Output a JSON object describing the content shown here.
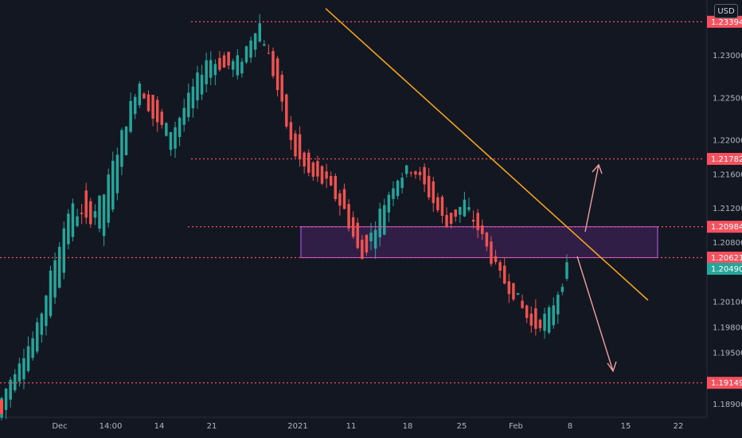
{
  "chart_data": {
    "type": "candlestick",
    "currency": "USD",
    "ylim": [
      1.188,
      1.2365
    ],
    "y_ticks": [
      "1.23000",
      "1.22500",
      "1.22000",
      "1.21600",
      "1.21200",
      "1.20800",
      "1.20100",
      "1.19800",
      "1.19500",
      "1.18900"
    ],
    "x_ticks": [
      "Dec",
      "14:00",
      "14",
      "21",
      "2021",
      "11",
      "18",
      "25",
      "Feb",
      "8",
      "15",
      "22"
    ],
    "price_levels": [
      {
        "label": "1.23394",
        "value": 1.23394
      },
      {
        "label": "1.21782",
        "value": 1.21782
      },
      {
        "label": "1.20984",
        "value": 1.20984
      },
      {
        "label": "1.20621",
        "value": 1.20621
      },
      {
        "label": "1.19149",
        "value": 1.19149
      }
    ],
    "current_price": {
      "label": "1.20490",
      "value": 1.2049
    },
    "zone": {
      "top": 1.20984,
      "bottom": 1.20621
    },
    "trendline": {
      "from": 1.2355,
      "to": 1.2012
    },
    "arrows": [
      "up",
      "down"
    ],
    "colors": {
      "background": "#131722",
      "up_candle": "#26a69a",
      "down_candle": "#ef5350",
      "level_line": "#f5515f",
      "trendline": "#f0a020",
      "zone_fill": "#6a2c8a",
      "zone_border": "#c45cff",
      "current_price": "#26a69a",
      "arrow": "#f0a0a0",
      "axis_text": "#b2b5be"
    },
    "series": [
      {
        "name": "",
        "points": [
          [
            1.1874,
            1.1896
          ],
          [
            1.1912,
            1.1942
          ],
          [
            1.1953,
            1.1972
          ],
          [
            1.2005,
            1.2052
          ],
          [
            1.2078,
            1.2124
          ],
          [
            1.2138,
            1.2102
          ],
          [
            1.2085,
            1.2138
          ],
          [
            1.2165,
            1.2205
          ],
          [
            1.2248,
            1.2272
          ],
          [
            1.2255,
            1.2218
          ],
          [
            1.2185,
            1.2212
          ],
          [
            1.2232,
            1.2252
          ],
          [
            1.2265,
            1.2298
          ],
          [
            1.2305,
            1.2285
          ],
          [
            1.2272,
            1.2296
          ],
          [
            1.2318,
            1.2342
          ],
          [
            1.2302,
            1.2268
          ],
          [
            1.2218,
            1.2188
          ],
          [
            1.2175,
            1.2158
          ],
          [
            1.2165,
            1.2148
          ],
          [
            1.2138,
            1.2118
          ],
          [
            1.2092,
            1.2058
          ],
          [
            1.2075,
            1.2112
          ],
          [
            1.2138,
            1.2155
          ],
          [
            1.2172,
            1.2168
          ],
          [
            1.2158,
            1.2135
          ],
          [
            1.2118,
            1.2098
          ],
          [
            1.2112,
            1.2128
          ],
          [
            1.2108,
            1.2088
          ],
          [
            1.2065,
            1.2042
          ],
          [
            1.2025,
            1.2018
          ],
          [
            1.2002,
            1.1978
          ],
          [
            1.1965,
            1.1998
          ],
          [
            1.2032,
            1.2049
          ]
        ]
      }
    ]
  }
}
